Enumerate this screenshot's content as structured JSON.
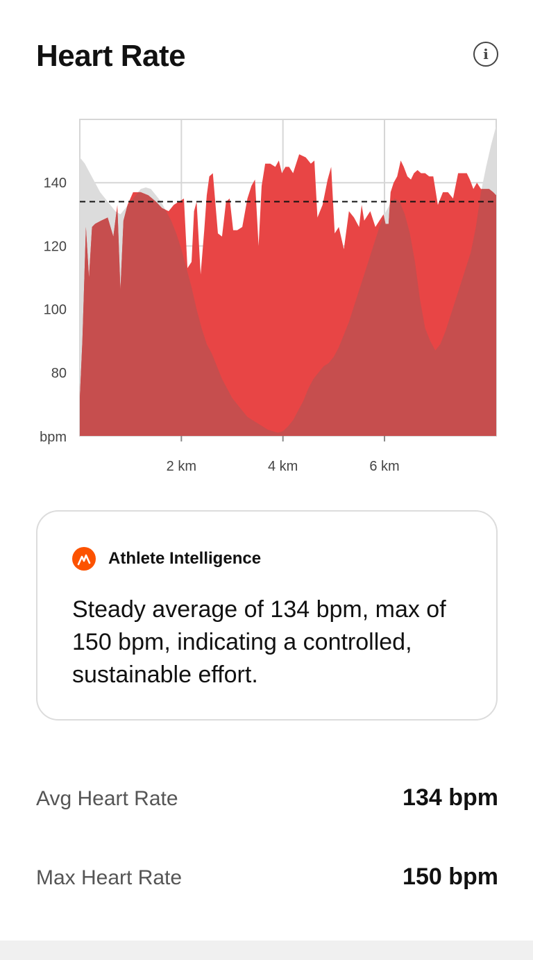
{
  "header": {
    "title": "Heart Rate",
    "info_icon": "info-icon"
  },
  "colors": {
    "heart_rate_fill": "#e84545",
    "elevation_fill": "#c64e4e",
    "elevation_above_fill": "#dcdcdc",
    "average_line": "#111111",
    "grid": "#d6d6d6",
    "accent": "#fc5200"
  },
  "chart_data": {
    "type": "area",
    "xlabel": "",
    "ylabel": "bpm",
    "x_ticks": [
      "2 km",
      "4 km",
      "6 km"
    ],
    "x_tick_values": [
      2,
      4,
      6
    ],
    "y_ticks": [
      "140",
      "120",
      "100",
      "80"
    ],
    "y_tick_values": [
      140,
      120,
      100,
      80
    ],
    "xlim": [
      0,
      8.2
    ],
    "ylim": [
      60,
      160
    ],
    "average_line": 134,
    "grid": true,
    "series": [
      {
        "x": [
          0,
          0.05,
          0.12,
          0.18,
          0.24,
          0.3,
          0.42,
          0.55,
          0.66,
          0.74,
          0.8,
          0.86,
          0.94,
          1.05,
          1.2,
          1.35,
          1.5,
          1.62,
          1.75,
          1.85,
          1.95,
          2.05,
          2.12,
          2.2,
          2.25,
          2.3,
          2.38,
          2.45,
          2.5,
          2.55,
          2.62,
          2.72,
          2.8,
          2.88,
          2.95,
          3.02,
          3.1,
          3.2,
          3.3,
          3.38,
          3.45,
          3.52,
          3.58,
          3.65,
          3.75,
          3.85,
          3.92,
          3.98,
          4.05,
          4.12,
          4.2,
          4.32,
          4.45,
          4.55,
          4.62,
          4.68,
          4.78,
          4.88,
          4.95,
          5.02,
          5.1,
          5.2,
          5.3,
          5.4,
          5.5,
          5.55,
          5.6,
          5.68,
          5.72,
          5.82,
          5.9,
          5.98,
          6.02,
          6.08,
          6.12,
          6.18,
          6.25,
          6.32,
          6.38,
          6.45,
          6.52,
          6.58,
          6.65,
          6.72,
          6.8,
          6.88,
          6.96,
          7.05,
          7.15,
          7.25,
          7.35,
          7.45,
          7.55,
          7.62,
          7.68,
          7.75,
          7.82,
          7.9,
          7.98,
          8.06,
          8.14,
          8.2
        ],
        "values": [
          72,
          90,
          126,
          110,
          126,
          127,
          128,
          129,
          123,
          133,
          106,
          128,
          133,
          137,
          137,
          136,
          134,
          132,
          131,
          133,
          134,
          135,
          113,
          115,
          131,
          134,
          111,
          125,
          136,
          142,
          143,
          124,
          123,
          134,
          135,
          125,
          125,
          126,
          135,
          139,
          141,
          120,
          139,
          146,
          146,
          145,
          147,
          143,
          145,
          145,
          143,
          149,
          148,
          146,
          147,
          129,
          133,
          141,
          145,
          124,
          126,
          119,
          131,
          129,
          126,
          133,
          128,
          130,
          131,
          126,
          128,
          130,
          127,
          127,
          137,
          140,
          142,
          147,
          145,
          142,
          141,
          143,
          144,
          143,
          143,
          142,
          142,
          133,
          137,
          137,
          135,
          143,
          143,
          143,
          141,
          138,
          140,
          138,
          138,
          138,
          137,
          136
        ]
      },
      {
        "x": [
          0,
          0.1,
          0.2,
          0.3,
          0.4,
          0.5,
          0.6,
          0.7,
          0.8,
          0.9,
          1.0,
          1.1,
          1.2,
          1.3,
          1.4,
          1.5,
          1.6,
          1.7,
          1.8,
          1.9,
          2.0,
          2.1,
          2.2,
          2.3,
          2.4,
          2.5,
          2.6,
          2.7,
          2.8,
          2.9,
          3.0,
          3.1,
          3.2,
          3.3,
          3.4,
          3.5,
          3.6,
          3.7,
          3.8,
          3.9,
          4.0,
          4.1,
          4.2,
          4.3,
          4.4,
          4.5,
          4.6,
          4.7,
          4.8,
          4.9,
          5.0,
          5.1,
          5.2,
          5.3,
          5.4,
          5.5,
          5.6,
          5.7,
          5.8,
          5.9,
          6.0,
          6.1,
          6.2,
          6.3,
          6.4,
          6.5,
          6.6,
          6.7,
          6.8,
          6.9,
          7.0,
          7.1,
          7.2,
          7.3,
          7.4,
          7.5,
          7.6,
          7.7,
          7.8,
          7.9,
          8.0,
          8.1,
          8.2
        ],
        "values": [
          148,
          146,
          143,
          140,
          137,
          135,
          133,
          131,
          130,
          132,
          134,
          136,
          138,
          138.5,
          138,
          136,
          134,
          131,
          128,
          124,
          119,
          113,
          107,
          100,
          94,
          89,
          86,
          82,
          78,
          75,
          72,
          70,
          68,
          66,
          65,
          64,
          63,
          62,
          61.5,
          61,
          61.5,
          63,
          65,
          68,
          71,
          75,
          78,
          80,
          82,
          83,
          85,
          88,
          92,
          96,
          101,
          106,
          111,
          116,
          121,
          126,
          130,
          133,
          135,
          134,
          130,
          124,
          115,
          103,
          94,
          90,
          87,
          89,
          93,
          98,
          103,
          108,
          113,
          118,
          126,
          137,
          145,
          152,
          158
        ]
      }
    ]
  },
  "ai_card": {
    "title": "Athlete Intelligence",
    "icon": "strava-icon",
    "text": "Steady average of 134 bpm, max of 150 bpm, indicating a controlled, sustainable effort."
  },
  "stats": {
    "avg_label": "Avg Heart Rate",
    "avg_value": "134 bpm",
    "max_label": "Max Heart Rate",
    "max_value": "150 bpm"
  }
}
